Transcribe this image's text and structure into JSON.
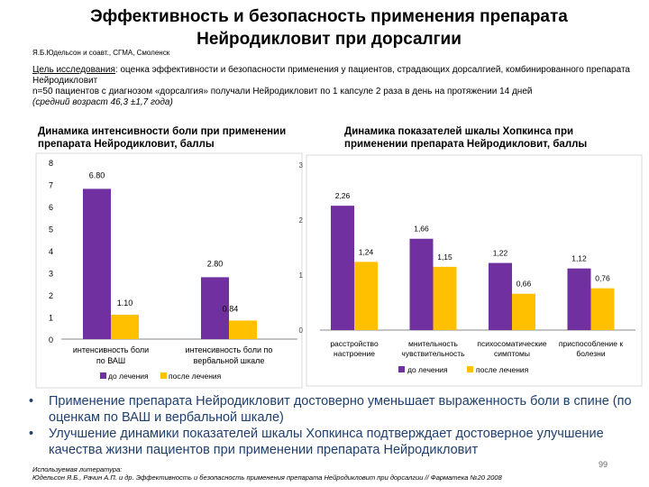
{
  "header": {
    "title_line1": "Эффективность и безопасность применения препарата",
    "title_line2": "Нейродикловит при дорсалгии",
    "authors": "Я.Б.Юдельсон и соавт., СГМА, Смоленск"
  },
  "aim": {
    "label": "Цель исследования",
    "text": ": оценка эффективности и безопасности применения у пациентов, страдающих дорсалгией, комбинированного препарата Нейродикловит",
    "line2": "n=50 пациентов с диагнозом «дорсалгия» получали Нейродикловит по 1 капсуле 2 раза в день на протяжении 14 дней",
    "line3": "(средний возраст 46,3 ±1,7 года)"
  },
  "colors": {
    "before": "#7030a0",
    "after": "#ffc000"
  },
  "chart_data": [
    {
      "type": "bar",
      "title": "Динамика интенсивности боли при применении препарата Нейродикловит, баллы",
      "categories": [
        "интенсивность боли по ВАШ",
        "интенсивность боли по вербальной шкале"
      ],
      "series": [
        {
          "name": "до лечения",
          "values": [
            6.8,
            2.8
          ],
          "labels": [
            "6.80",
            "2.80"
          ]
        },
        {
          "name": "после лечения",
          "values": [
            1.1,
            0.84
          ],
          "labels": [
            "1.10",
            "0.84"
          ]
        }
      ],
      "ylim": [
        0,
        8
      ],
      "yticks": [
        "0",
        "1",
        "2",
        "3",
        "4",
        "5",
        "6",
        "7",
        "8"
      ],
      "legend": [
        "до лечения",
        "после лечения"
      ]
    },
    {
      "type": "bar",
      "title": "Динамика показателей шкалы Хопкинса при применении препарата Нейродикловит, баллы",
      "categories": [
        "расстройство настроение",
        "мнительность чувствительность",
        "психосоматические симптомы",
        "приспособление к болезни"
      ],
      "series": [
        {
          "name": "до лечения",
          "values": [
            2.26,
            1.66,
            1.22,
            1.12
          ],
          "labels": [
            "2,26",
            "1,66",
            "1,22",
            "1,12"
          ]
        },
        {
          "name": "после лечения",
          "values": [
            1.24,
            1.15,
            0.66,
            0.76
          ],
          "labels": [
            "1,24",
            "1,15",
            "0,66",
            "0,76"
          ]
        }
      ],
      "ylim": [
        0,
        3
      ],
      "yticks": [
        "0",
        "1",
        "2",
        "3"
      ],
      "legend": [
        "до лечения",
        "после лечения"
      ]
    }
  ],
  "conclusions": [
    "Применение препарата Нейродикловит достоверно уменьшает выраженность боли в спине (по оценкам по ВАШ и вербальной шкале)",
    "Улучшение динамики показателей шкалы Хопкинса подтверждает достоверное улучшение качества жизни пациентов при применении препарата Нейродикловит"
  ],
  "references": {
    "label": "Используемая литература:",
    "text": "Юдельсон Я.Б., Рачин А.П. и др. Эффективность и безопасность применения препарата Нейродикловит при дорсалгии // Фарматека №20 2008"
  },
  "page_number": "99"
}
